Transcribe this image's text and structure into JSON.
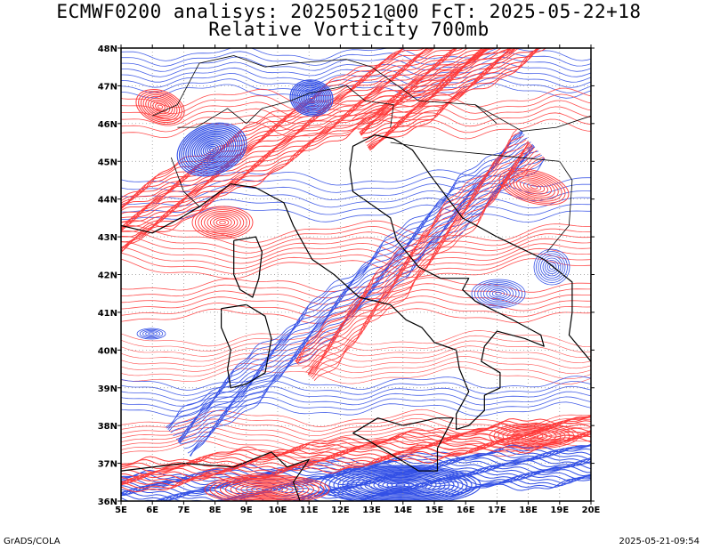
{
  "title": {
    "line1": "ECMWF0200 analisys: 20250521@00 FcT: 2025-05-22+18",
    "line2": "Relative Vorticity 700mb"
  },
  "axes": {
    "lat_labels": [
      "36N",
      "37N",
      "38N",
      "39N",
      "40N",
      "41N",
      "42N",
      "43N",
      "44N",
      "45N",
      "46N",
      "47N",
      "48N"
    ],
    "lon_labels": [
      "5E",
      "6E",
      "7E",
      "8E",
      "9E",
      "10E",
      "11E",
      "12E",
      "13E",
      "14E",
      "15E",
      "16E",
      "17E",
      "18E",
      "19E",
      "20E"
    ]
  },
  "colors": {
    "positive": "#ff3b3b",
    "negative": "#3350e6",
    "coast": "#000000",
    "grid": "#8a8a8a"
  },
  "footer": {
    "left": "GrADS/COLA",
    "right": "2025-05-21-09:54"
  }
}
